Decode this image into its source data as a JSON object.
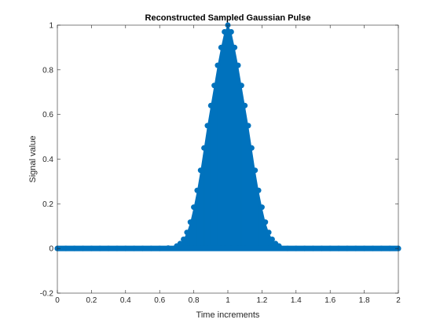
{
  "chart_data": {
    "type": "line",
    "title": "Reconstructed Sampled Gaussian Pulse",
    "xlabel": "Time increments",
    "ylabel": "Signal value",
    "xlim": [
      0,
      2
    ],
    "ylim": [
      -0.2,
      1
    ],
    "xticks": [
      0,
      0.2,
      0.4,
      0.6,
      0.8,
      1,
      1.2,
      1.4,
      1.6,
      1.8,
      2
    ],
    "xtick_labels": [
      "0",
      "0.2",
      "0.4",
      "0.6",
      "0.8",
      "1",
      "1.2",
      "1.4",
      "1.6",
      "1.8",
      "2"
    ],
    "yticks": [
      -0.2,
      0,
      0.2,
      0.4,
      0.6,
      0.8,
      1
    ],
    "ytick_labels": [
      "-0.2",
      "0",
      "0.2",
      "0.4",
      "0.6",
      "0.8",
      "1"
    ],
    "grid": false,
    "series": [
      {
        "style": "stem",
        "color": "#0072BD",
        "baseline": 0,
        "x": [
          0.0,
          0.05,
          0.1,
          0.15,
          0.2,
          0.25,
          0.3,
          0.35,
          0.4,
          0.45,
          0.5,
          0.55,
          0.6,
          0.65,
          0.7,
          0.72,
          0.74,
          0.76,
          0.78,
          0.8,
          0.82,
          0.84,
          0.86,
          0.88,
          0.9,
          0.92,
          0.94,
          0.96,
          0.98,
          1.0,
          1.02,
          1.04,
          1.06,
          1.08,
          1.1,
          1.12,
          1.14,
          1.16,
          1.18,
          1.2,
          1.22,
          1.24,
          1.26,
          1.28,
          1.3,
          1.35,
          1.4,
          1.45,
          1.5,
          1.55,
          1.6,
          1.65,
          1.7,
          1.75,
          1.8,
          1.85,
          1.9,
          1.95,
          2.0
        ],
        "y": [
          0,
          0,
          0,
          0,
          0,
          0,
          0,
          0,
          0,
          0,
          0,
          0,
          0,
          0.002,
          0.011,
          0.022,
          0.041,
          0.072,
          0.118,
          0.185,
          0.26,
          0.35,
          0.45,
          0.55,
          0.64,
          0.73,
          0.82,
          0.9,
          0.97,
          1.0,
          0.97,
          0.9,
          0.82,
          0.73,
          0.64,
          0.55,
          0.45,
          0.35,
          0.26,
          0.185,
          0.118,
          0.072,
          0.041,
          0.022,
          0.011,
          0,
          0,
          0,
          0,
          0,
          0,
          0,
          0,
          0,
          0,
          0,
          0,
          0,
          0
        ]
      }
    ]
  }
}
